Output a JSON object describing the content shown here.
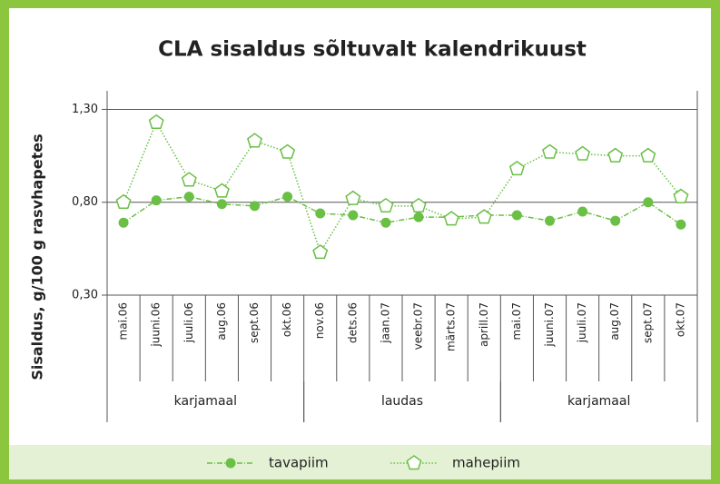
{
  "chart_data": {
    "type": "line",
    "title": "CLA sisaldus sõltuvalt kalendrikuust",
    "y_label": "Sisaldus, g/100 g rasvhapetes",
    "categories": [
      "mai.06",
      "juuni.06",
      "juuli.06",
      "aug.06",
      "sept.06",
      "okt.06",
      "nov.06",
      "dets.06",
      "jaan.07",
      "veebr.07",
      "märts.07",
      "aprill.07",
      "mai.07",
      "juuni.07",
      "juuli.07",
      "aug.07",
      "sept.07",
      "okt.07"
    ],
    "groups": [
      {
        "label": "karjamaal",
        "span": 6
      },
      {
        "label": "laudas",
        "span": 6
      },
      {
        "label": "karjamaal",
        "span": 6
      }
    ],
    "series": [
      {
        "name": "tavapiim",
        "color": "#6abf45",
        "marker": "circle",
        "values": [
          0.69,
          0.81,
          0.83,
          0.79,
          0.78,
          0.83,
          0.74,
          0.73,
          0.69,
          0.72,
          0.72,
          0.73,
          0.73,
          0.7,
          0.75,
          0.7,
          0.8,
          0.68
        ]
      },
      {
        "name": "mahepiim",
        "color": "#6abf45",
        "marker": "pentagon",
        "values": [
          0.8,
          1.23,
          0.92,
          0.86,
          1.13,
          1.07,
          0.53,
          0.82,
          0.78,
          0.78,
          0.71,
          0.72,
          0.98,
          1.07,
          1.06,
          1.05,
          1.05,
          0.83
        ]
      }
    ],
    "ylim": [
      0.3,
      1.4
    ],
    "yticks": [
      {
        "value": 0.3,
        "label": "0,30"
      },
      {
        "value": 0.8,
        "label": "0,80"
      },
      {
        "value": 1.3,
        "label": "1,30"
      }
    ],
    "grid": true,
    "legend": "bottom"
  }
}
